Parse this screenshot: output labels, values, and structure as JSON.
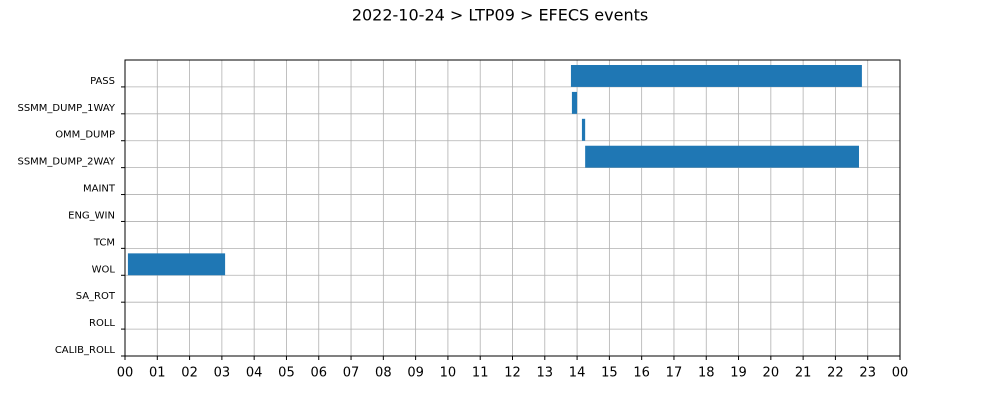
{
  "chart_data": {
    "type": "gantt",
    "title": "2022-10-24 > LTP09 > EFECS events",
    "categories": [
      "PASS",
      "SSMM_DUMP_1WAY",
      "OMM_DUMP",
      "SSMM_DUMP_2WAY",
      "MAINT",
      "ENG_WIN",
      "TCM",
      "WOL",
      "SA_ROT",
      "ROLL",
      "CALIB_ROLL"
    ],
    "values": [
      [
        13.81,
        22.82
      ],
      [
        13.84,
        14.0
      ],
      [
        14.15,
        14.25
      ],
      [
        14.25,
        22.73
      ],
      null,
      null,
      null,
      [
        0.09,
        3.1
      ],
      null,
      null,
      null
    ],
    "color": "#1f77b4",
    "xlim": [
      0,
      24
    ],
    "xticks": [
      {
        "value": 0,
        "label": "00"
      },
      {
        "value": 1,
        "label": "01"
      },
      {
        "value": 2,
        "label": "02"
      },
      {
        "value": 3,
        "label": "03"
      },
      {
        "value": 4,
        "label": "04"
      },
      {
        "value": 5,
        "label": "05"
      },
      {
        "value": 6,
        "label": "06"
      },
      {
        "value": 7,
        "label": "07"
      },
      {
        "value": 8,
        "label": "08"
      },
      {
        "value": 9,
        "label": "09"
      },
      {
        "value": 10,
        "label": "10"
      },
      {
        "value": 11,
        "label": "11"
      },
      {
        "value": 12,
        "label": "12"
      },
      {
        "value": 13,
        "label": "13"
      },
      {
        "value": 14,
        "label": "14"
      },
      {
        "value": 15,
        "label": "15"
      },
      {
        "value": 16,
        "label": "16"
      },
      {
        "value": 17,
        "label": "17"
      },
      {
        "value": 18,
        "label": "18"
      },
      {
        "value": 19,
        "label": "19"
      },
      {
        "value": 20,
        "label": "20"
      },
      {
        "value": 21,
        "label": "21"
      },
      {
        "value": 22,
        "label": "22"
      },
      {
        "value": 23,
        "label": "23"
      },
      {
        "value": 24,
        "label": "00"
      }
    ],
    "grid": true
  }
}
